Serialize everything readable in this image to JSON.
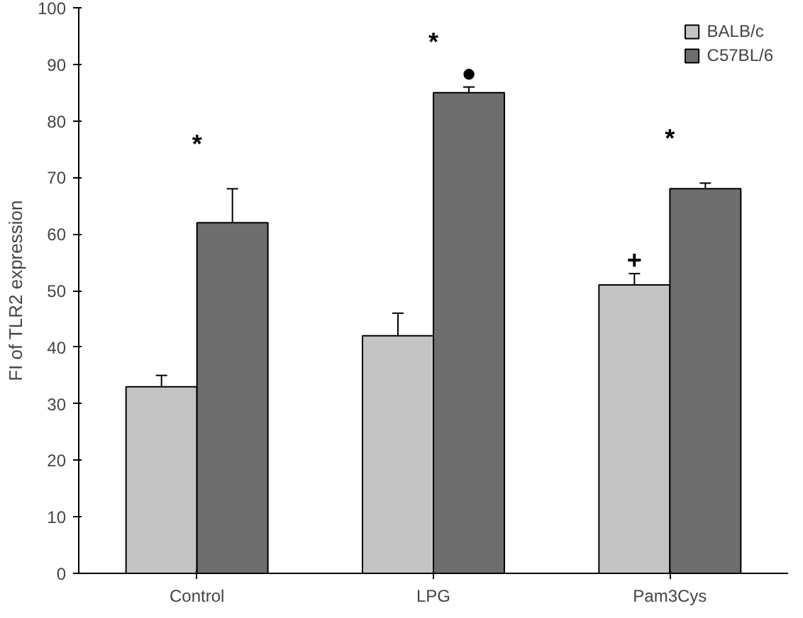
{
  "chart_data": {
    "type": "bar",
    "ylabel": "FI of TLR2 expression",
    "categories": [
      "Control",
      "LPG",
      "Pam3Cys"
    ],
    "series": [
      {
        "name": "BALB/c",
        "color": "#c4c4c4",
        "values": [
          33,
          42,
          51
        ],
        "errors": [
          2,
          4,
          2
        ]
      },
      {
        "name": "C57BL/6",
        "color": "#6e6e6e",
        "values": [
          62,
          85,
          68
        ],
        "errors": [
          6,
          1,
          1
        ]
      }
    ],
    "ylim": [
      0,
      100
    ],
    "yticks": [
      0,
      10,
      20,
      30,
      40,
      50,
      60,
      70,
      80,
      90,
      100
    ],
    "grid": false,
    "legend": "top right",
    "annotations": [
      "*",
      "*",
      "*",
      "●",
      "+"
    ]
  }
}
